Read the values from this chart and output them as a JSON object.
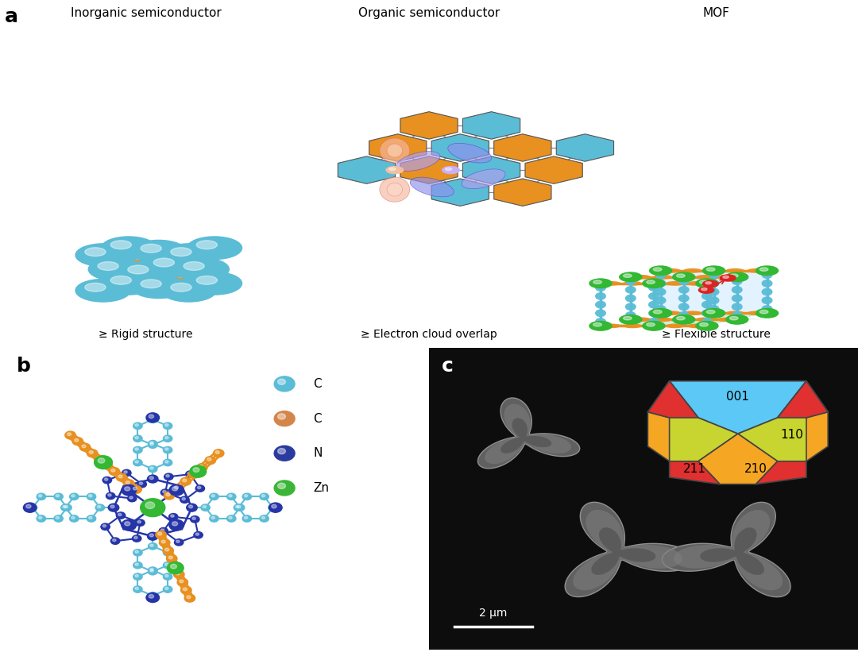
{
  "bg_color": "#ffffff",
  "panel_a_labels": [
    "Inorganic semiconductor",
    "Organic semiconductor",
    "MOF"
  ],
  "panel_a_sublabels": [
    "≥ Rigid structure",
    "≥ Electron cloud overlap",
    "≥ Flexible structure"
  ],
  "panel_b_legend": [
    {
      "label": "C",
      "color": "#5bbcd6"
    },
    {
      "label": "C",
      "color": "#d4854a"
    },
    {
      "label": "N",
      "color": "#2b3a9e"
    },
    {
      "label": "Zn",
      "color": "#3ab536"
    }
  ],
  "crystal_colors": {
    "001": "#5bc8f5",
    "110": "#c8d430",
    "210": "#f5a623",
    "211": "#e03030"
  },
  "scale_bar_text": "2 μm",
  "blue_atom": "#5bbcd6",
  "orange_atom": "#e89020",
  "dark_blue_atom": "#2535a8",
  "green_atom": "#32b832",
  "red_atom": "#dd2222",
  "bond_gray": "#888888",
  "bond_dash": "#aaaaaa"
}
